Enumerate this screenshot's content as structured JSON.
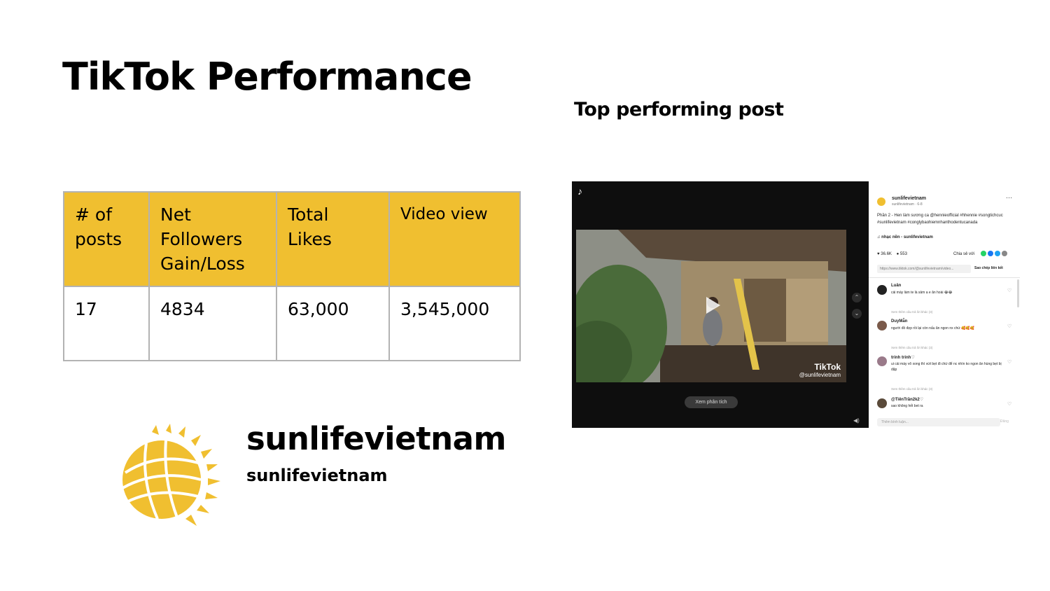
{
  "title": "TikTok Performance",
  "subtitle": "Top performing post",
  "table": {
    "headers": [
      "# of posts",
      "Net Followers Gain/Loss",
      "Total Likes",
      "Video view"
    ],
    "values": [
      "17",
      "4834",
      "63,000",
      "3,545,000"
    ]
  },
  "brand": {
    "name": "sunlifevietnam",
    "handle": "sunlifevietnam",
    "logo_color": "#f0bf30"
  },
  "post": {
    "watermark": "TikTok",
    "watermark_handle": "@sunlifevietnam",
    "analytics_label": "Xem phân tích",
    "username": "sunlifevietnam",
    "user_sub": "sunlifevietnam · 6-8",
    "caption": "Phần 2 - Hen làm sương ca @hennieofficial #hhennie #songtichcuc #sunlifevietnam #conglybaohiemnhanthodentucanada",
    "music": "nhạc nền - sunlifevietnam",
    "likes": "36.6K",
    "comments_count": "553",
    "share_label": "Chia sẻ với",
    "link": "https://www.tiktok.com/@sunlifevietnam/video...",
    "copy_label": "Sao chép liên kết",
    "comments": [
      {
        "name": "Luân",
        "text": "cái máy làm te là sảm a e ăn hoài 😂😂",
        "more": "Xem thêm câu trả lời khác (3)"
      },
      {
        "name": "DuyMẫn",
        "text": "người đồ đẹp rồi lại còn nấu ăn ngon nx chứ 🥰🥰🥰",
        "more": "Xem thêm câu trả lời khác (3)"
      },
      {
        "name": "trinh trinh♡",
        "text": "ui cái máy vô xong thì vứt bẹt đi chứ để nc nhìn ko ngon ăn hùng bẹt bị dặp",
        "more": "Xem thêm câu trả lời khác (3)"
      },
      {
        "name": "@TiênTrần2k2♡",
        "text": "sao không hết bet ra",
        "more": ""
      }
    ],
    "comment_placeholder": "Thêm bình luận...",
    "post_label": "Đăng"
  }
}
